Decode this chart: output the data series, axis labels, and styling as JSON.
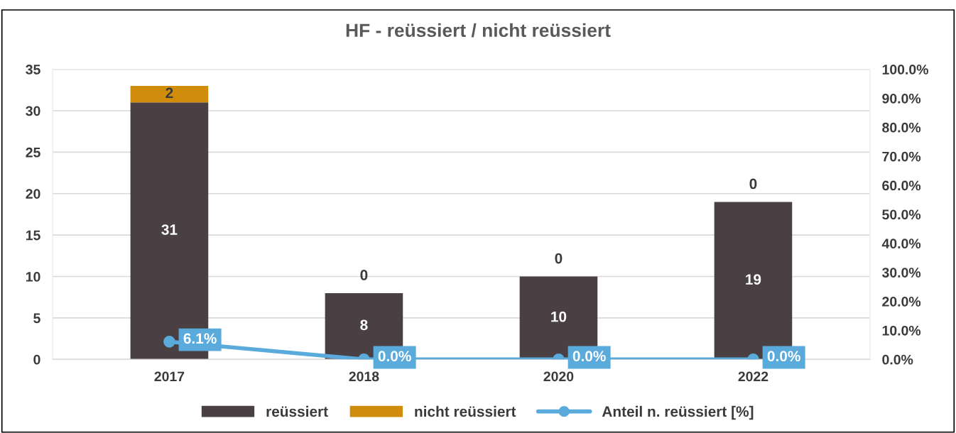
{
  "chart_data": {
    "type": "bar",
    "title": "HF - reüssiert / nicht reüssiert",
    "stacked": true,
    "categories": [
      "2017",
      "2018",
      "2020",
      "2022"
    ],
    "series": [
      {
        "name": "reüssiert",
        "color": "#4a4043",
        "values": [
          31,
          8,
          10,
          19
        ],
        "value_labels": [
          "31",
          "8",
          "10",
          "19"
        ]
      },
      {
        "name": "nicht reüssiert",
        "color": "#d08c0b",
        "values": [
          2,
          0,
          0,
          0
        ],
        "value_labels": [
          "2",
          "0",
          "0",
          "0"
        ]
      },
      {
        "name": "Anteil n. reüssiert [%]",
        "type": "line",
        "axis": "y2",
        "color": "#5aaadc",
        "values": [
          6.1,
          0.0,
          0.0,
          0.0
        ],
        "value_labels": [
          "6.1%",
          "0.0%",
          "0.0%",
          "0.0%"
        ]
      }
    ],
    "ylim": [
      0,
      35
    ],
    "yticks": [
      0,
      5,
      10,
      15,
      20,
      25,
      30,
      35
    ],
    "y2lim": [
      0,
      100
    ],
    "y2ticks": [
      {
        "value": 0,
        "label": "0.0%"
      },
      {
        "value": 10,
        "label": "10.0%"
      },
      {
        "value": 20,
        "label": "20.0%"
      },
      {
        "value": 30,
        "label": "30.0%"
      },
      {
        "value": 40,
        "label": "40.0%"
      },
      {
        "value": 50,
        "label": "50.0%"
      },
      {
        "value": 60,
        "label": "60.0%"
      },
      {
        "value": 70,
        "label": "70.0%"
      },
      {
        "value": 80,
        "label": "80.0%"
      },
      {
        "value": 90,
        "label": "90.0%"
      },
      {
        "value": 100,
        "label": "100.0%"
      }
    ],
    "grid": "y",
    "legend": "bottom",
    "marker": "circle",
    "line_style": "solid"
  }
}
